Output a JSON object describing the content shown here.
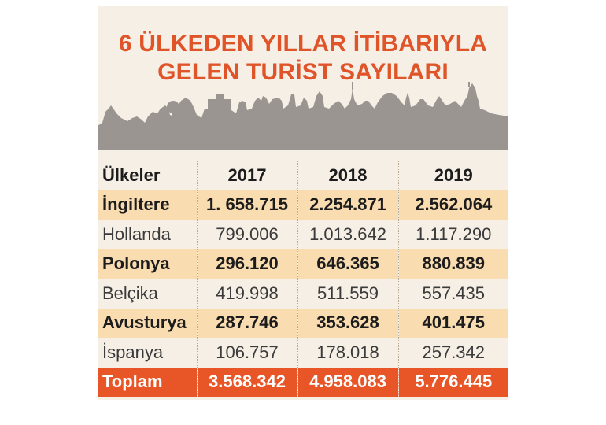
{
  "title": {
    "line1": "6 ÜLKEDEN YILLAR İTİBARIYLA",
    "line2": "GELEN TURİST SAYILARI"
  },
  "table": {
    "headers": [
      "Ülkeler",
      "2017",
      "2018",
      "2019"
    ],
    "rows": [
      {
        "country": "İngiltere",
        "values": [
          "1. 658.715",
          "2.254.871",
          "2.562.064"
        ],
        "style": "bold-shaded"
      },
      {
        "country": "Hollanda",
        "values": [
          "799.006",
          "1.013.642",
          "1.117.290"
        ],
        "style": "plain"
      },
      {
        "country": "Polonya",
        "values": [
          "296.120",
          "646.365",
          "880.839"
        ],
        "style": "bold-shaded"
      },
      {
        "country": "Belçika",
        "values": [
          "419.998",
          "511.559",
          "557.435"
        ],
        "style": "plain"
      },
      {
        "country": "Avusturya",
        "values": [
          "287.746",
          "353.628",
          "401.475"
        ],
        "style": "bold-shaded"
      },
      {
        "country": "İspanya",
        "values": [
          "106.757",
          "178.018",
          "257.342"
        ],
        "style": "plain"
      }
    ],
    "total": {
      "country": "Toplam",
      "values": [
        "3.568.342",
        "4.958.083",
        "5.776.445"
      ]
    }
  },
  "colors": {
    "title": "#e0542a",
    "shade": "#f9dcb0",
    "total_bg": "#e85526",
    "skyline": "#9a9591",
    "card_bg": "#f6efe6"
  }
}
